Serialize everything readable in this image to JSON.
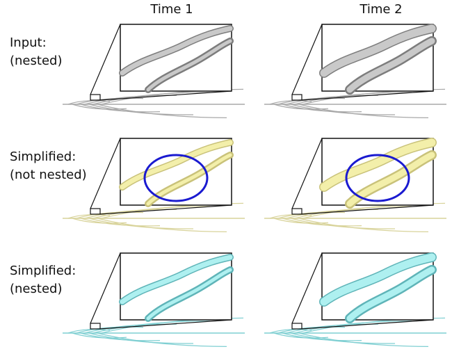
{
  "columns": [
    "Time 1",
    "Time 2"
  ],
  "rows": [
    {
      "label_lines": [
        "Input:",
        "(nested)"
      ]
    },
    {
      "label_lines": [
        "Simplified:",
        "(not nested)"
      ]
    },
    {
      "label_lines": [
        "Simplified:",
        "(nested)"
      ]
    }
  ]
}
